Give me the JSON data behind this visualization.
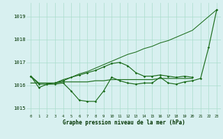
{
  "x": [
    0,
    1,
    2,
    3,
    4,
    5,
    6,
    7,
    8,
    9,
    10,
    11,
    12,
    13,
    14,
    15,
    16,
    17,
    18,
    19,
    20,
    21,
    22,
    23
  ],
  "line_diagonal": [
    1016.4,
    1016.1,
    1016.1,
    1016.1,
    1016.25,
    1016.35,
    1016.5,
    1016.6,
    1016.75,
    1016.9,
    1017.05,
    1017.2,
    1017.35,
    1017.45,
    1017.6,
    1017.7,
    1017.85,
    1017.95,
    1018.1,
    1018.25,
    1018.4,
    1018.7,
    1019.0,
    1019.3
  ],
  "line_dip": [
    1016.4,
    1015.9,
    1016.05,
    1016.05,
    1016.1,
    1015.75,
    1015.35,
    1015.3,
    1015.3,
    1015.75,
    1016.35,
    1016.2,
    1016.1,
    1016.05,
    1016.1,
    1016.1,
    1016.35,
    1016.1,
    1016.05,
    1016.15,
    1016.2,
    1016.3,
    1017.65,
    1019.3
  ],
  "line_flat": [
    1016.1,
    1016.1,
    1016.1,
    1016.1,
    1016.15,
    1016.15,
    1016.15,
    1016.15,
    1016.2,
    1016.2,
    1016.25,
    1016.25,
    1016.25,
    1016.25,
    1016.25,
    1016.25,
    1016.3,
    1016.3,
    1016.3,
    1016.3,
    1016.3,
    null,
    null,
    null
  ],
  "line_hill": [
    1016.4,
    1016.05,
    1016.05,
    1016.1,
    1016.2,
    1016.35,
    1016.45,
    1016.55,
    1016.65,
    1016.8,
    1016.95,
    1017.0,
    1016.85,
    1016.55,
    1016.4,
    1016.4,
    1016.45,
    1016.4,
    1016.35,
    1016.4,
    1016.35,
    null,
    null,
    null
  ],
  "bg_color": "#d8f0f0",
  "grid_color": "#aaddcc",
  "line_color": "#1a6b1a",
  "ylim_min": 1014.75,
  "ylim_max": 1019.6,
  "yticks": [
    1015,
    1016,
    1017,
    1018,
    1019
  ],
  "xlabel": "Graphe pression niveau de la mer (hPa)"
}
